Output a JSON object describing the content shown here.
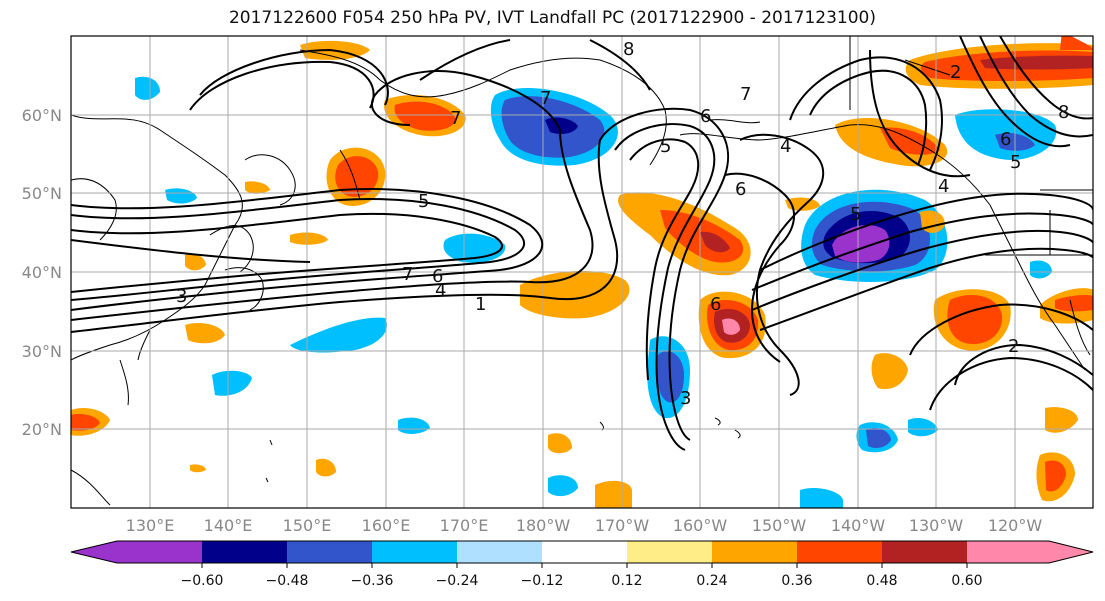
{
  "title": "2017122600 F054 250 hPa PV, IVT Landfall PC (2017122900 - 2017123100)",
  "lat_labels": [
    "60°N",
    "50°N",
    "40°N",
    "30°N",
    "20°N"
  ],
  "lon_labels": [
    "130°E",
    "140°E",
    "150°E",
    "160°E",
    "170°E",
    "180°W",
    "170°W",
    "160°W",
    "150°W",
    "140°W",
    "130°W",
    "120°W"
  ],
  "colorbar": {
    "labels": [
      "−0.60",
      "−0.48",
      "−0.36",
      "−0.24",
      "−0.12",
      "0.12",
      "0.24",
      "0.36",
      "0.48",
      "0.60"
    ],
    "colors": [
      "#9933cc",
      "#00008b",
      "#3355cc",
      "#00bfff",
      "#b0e0ff",
      "#ffffff",
      "#ffee88",
      "#ffa500",
      "#ff4500",
      "#b22222",
      "#ff88aa"
    ]
  },
  "contour_labels": [
    "8",
    "7",
    "6",
    "5",
    "4",
    "3",
    "2",
    "1"
  ],
  "colors": {
    "coast": "#000000",
    "grid": "#aaaaaa",
    "contour": "#000000"
  }
}
